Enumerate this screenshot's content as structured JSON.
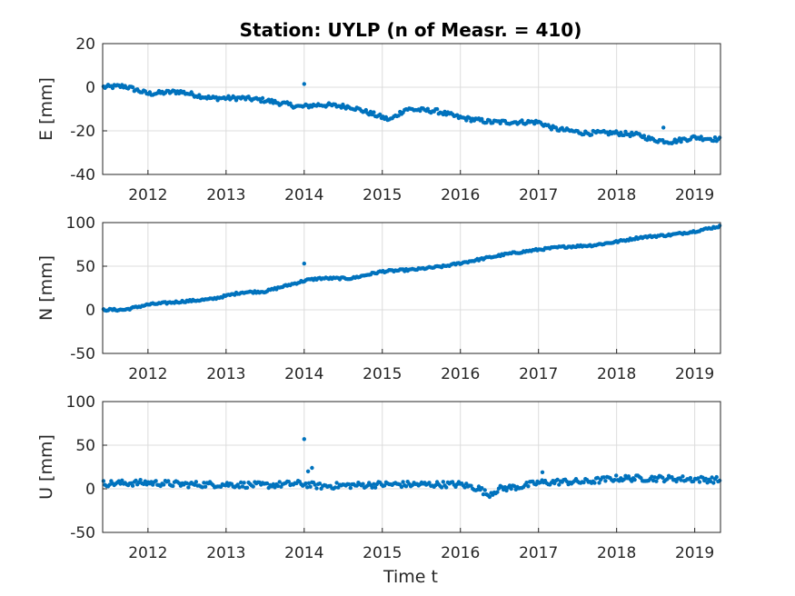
{
  "title": "Station: UYLP (n of Measr. = 410)",
  "xlabel": "Time t",
  "colors": {
    "marker": "#0072BD",
    "axis": "#262626",
    "grid": "#dcdcdc"
  },
  "chart_data": [
    {
      "type": "scatter",
      "ylabel": "E [mm]",
      "xlim": [
        2011.42,
        2019.33
      ],
      "ylim": [
        -40,
        20
      ],
      "xticks": [
        2012,
        2013,
        2014,
        2015,
        2016,
        2017,
        2018,
        2019
      ],
      "yticks": [
        -40,
        -20,
        0,
        20
      ],
      "grid": true,
      "series": [
        {
          "x": [],
          "y": [],
          "keypoints": [
            [
              2011.42,
              0
            ],
            [
              2011.7,
              0.5
            ],
            [
              2012.0,
              -3
            ],
            [
              2012.4,
              -2
            ],
            [
              2012.8,
              -5
            ],
            [
              2013.2,
              -5
            ],
            [
              2013.5,
              -6
            ],
            [
              2013.95,
              -9
            ],
            [
              2014.2,
              -8
            ],
            [
              2014.6,
              -9
            ],
            [
              2015.1,
              -15
            ],
            [
              2015.3,
              -10
            ],
            [
              2015.7,
              -11
            ],
            [
              2016.0,
              -14
            ],
            [
              2016.4,
              -16
            ],
            [
              2016.8,
              -16
            ],
            [
              2017.0,
              -16
            ],
            [
              2017.2,
              -19
            ],
            [
              2017.6,
              -21
            ],
            [
              2018.0,
              -21
            ],
            [
              2018.3,
              -22
            ],
            [
              2018.45,
              -24
            ],
            [
              2018.7,
              -25
            ],
            [
              2019.0,
              -23
            ],
            [
              2019.33,
              -24
            ]
          ],
          "outliers": [
            [
              2014.0,
              1.5
            ],
            [
              2018.6,
              -18.5
            ]
          ],
          "noise": 1.0
        }
      ]
    },
    {
      "type": "scatter",
      "ylabel": "N [mm]",
      "xlim": [
        2011.42,
        2019.33
      ],
      "ylim": [
        -50,
        100
      ],
      "xticks": [
        2012,
        2013,
        2014,
        2015,
        2016,
        2017,
        2018,
        2019
      ],
      "yticks": [
        -50,
        0,
        50,
        100
      ],
      "grid": true,
      "series": [
        {
          "x": [],
          "y": [],
          "keypoints": [
            [
              2011.42,
              0
            ],
            [
              2011.7,
              0
            ],
            [
              2012.0,
              6
            ],
            [
              2012.5,
              10
            ],
            [
              2012.8,
              12
            ],
            [
              2013.2,
              20
            ],
            [
              2013.5,
              21
            ],
            [
              2013.95,
              32
            ],
            [
              2014.03,
              34
            ],
            [
              2014.2,
              36
            ],
            [
              2014.6,
              36
            ],
            [
              2015.0,
              44
            ],
            [
              2015.4,
              46
            ],
            [
              2015.8,
              50
            ],
            [
              2016.2,
              57
            ],
            [
              2016.6,
              64
            ],
            [
              2017.0,
              69
            ],
            [
              2017.3,
              72
            ],
            [
              2017.7,
              74
            ],
            [
              2018.0,
              78
            ],
            [
              2018.3,
              83
            ],
            [
              2018.7,
              86
            ],
            [
              2019.0,
              90
            ],
            [
              2019.33,
              96
            ]
          ],
          "outliers": [
            [
              2014.0,
              53
            ]
          ],
          "noise": 1.2
        }
      ]
    },
    {
      "type": "scatter",
      "ylabel": "U [mm]",
      "xlim": [
        2011.42,
        2019.33
      ],
      "ylim": [
        -50,
        100
      ],
      "xticks": [
        2012,
        2013,
        2014,
        2015,
        2016,
        2017,
        2018,
        2019
      ],
      "yticks": [
        -50,
        0,
        50,
        100
      ],
      "grid": true,
      "series": [
        {
          "x": [],
          "y": [],
          "keypoints": [
            [
              2011.42,
              6
            ],
            [
              2012.0,
              7
            ],
            [
              2012.5,
              5
            ],
            [
              2013.0,
              5
            ],
            [
              2013.5,
              4
            ],
            [
              2013.95,
              6
            ],
            [
              2014.2,
              3
            ],
            [
              2014.6,
              4
            ],
            [
              2015.0,
              5
            ],
            [
              2015.5,
              5
            ],
            [
              2016.0,
              5
            ],
            [
              2016.25,
              0
            ],
            [
              2016.35,
              -7
            ],
            [
              2016.5,
              0
            ],
            [
              2016.8,
              3
            ],
            [
              2017.0,
              7
            ],
            [
              2017.3,
              8
            ],
            [
              2017.6,
              8
            ],
            [
              2018.0,
              12
            ],
            [
              2018.5,
              12
            ],
            [
              2019.0,
              11
            ],
            [
              2019.33,
              10
            ]
          ],
          "outliers": [
            [
              2014.0,
              57
            ],
            [
              2014.05,
              20
            ],
            [
              2014.1,
              24
            ],
            [
              2017.05,
              19
            ]
          ],
          "noise": 3.5
        }
      ]
    }
  ]
}
